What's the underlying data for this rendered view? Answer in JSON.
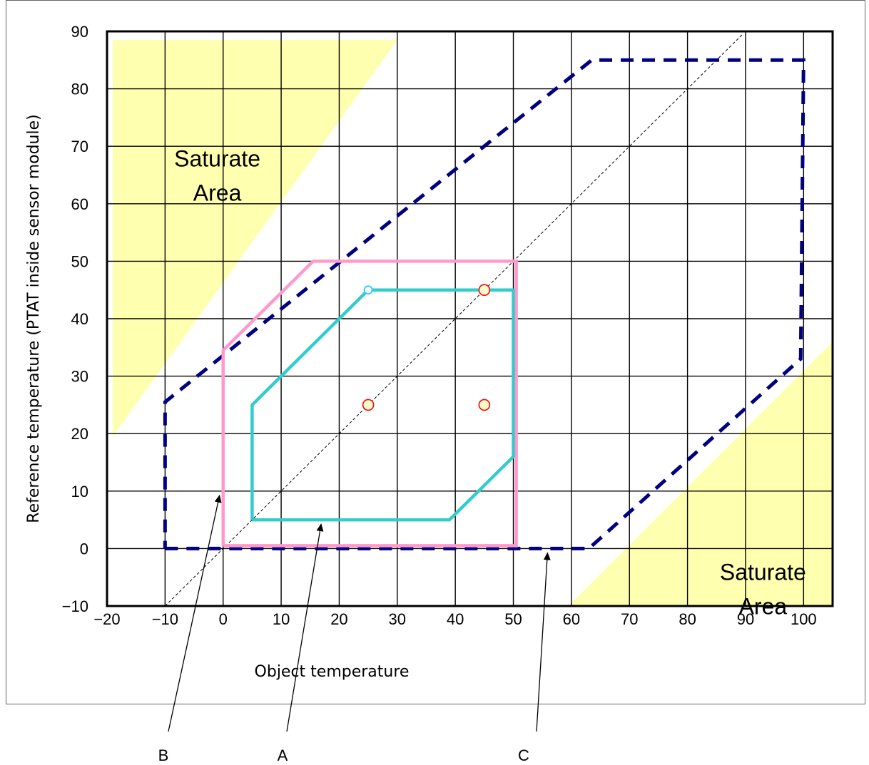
{
  "colors": {
    "saturate_fill": "#FFFFB0",
    "region_A": "#33CCCC",
    "region_B": "#FF99CC",
    "region_C": "#000080",
    "diagonal": "#000000",
    "marker_fill": "#FFFFCC",
    "marker_stroke": "#FF0000",
    "marker_cyan_stroke": "#33CCFF"
  },
  "chart_data": {
    "type": "line",
    "title": "",
    "xlabel": "Object temperature",
    "ylabel": "Reference temperature (PTAT inside sensor module)",
    "xlim": [
      -20,
      105
    ],
    "ylim": [
      -10,
      90
    ],
    "x_ticks": [
      "−20",
      "−10",
      "0",
      "10",
      "20",
      "30",
      "40",
      "50",
      "60",
      "70",
      "80",
      "90",
      "100"
    ],
    "y_ticks": [
      "−10",
      "0",
      "10",
      "20",
      "30",
      "40",
      "50",
      "60",
      "70",
      "80",
      "90"
    ],
    "x_tick_values": [
      -20,
      -10,
      0,
      10,
      20,
      30,
      40,
      50,
      60,
      70,
      80,
      90,
      100
    ],
    "y_tick_values": [
      -10,
      0,
      10,
      20,
      30,
      40,
      50,
      60,
      70,
      80,
      90
    ],
    "grid": true,
    "saturate_areas": [
      {
        "label_lines": [
          "Saturate",
          "Area"
        ],
        "polygon": [
          [
            -19,
            88.5
          ],
          [
            30,
            88.5
          ],
          [
            -19,
            19.5
          ]
        ]
      },
      {
        "label_lines": [
          "Saturate",
          "Area"
        ],
        "polygon": [
          [
            59.5,
            -10
          ],
          [
            105,
            -10
          ],
          [
            105,
            36
          ]
        ]
      }
    ],
    "series": [
      {
        "key": "A",
        "style": "solid",
        "points": [
          [
            5,
            5
          ],
          [
            39,
            5
          ],
          [
            50,
            16
          ],
          [
            50,
            45
          ],
          [
            25,
            45
          ],
          [
            5,
            25
          ],
          [
            5,
            5
          ]
        ]
      },
      {
        "key": "B",
        "style": "solid",
        "points": [
          [
            0,
            0.5
          ],
          [
            50.5,
            0.5
          ],
          [
            50.5,
            50
          ],
          [
            15.5,
            50
          ],
          [
            0,
            34.5
          ],
          [
            0,
            0.5
          ]
        ]
      },
      {
        "key": "C",
        "style": "dashed",
        "points": [
          [
            -10,
            0
          ],
          [
            63,
            0
          ],
          [
            99.5,
            33
          ],
          [
            100,
            85
          ],
          [
            63.5,
            85
          ],
          [
            -10,
            25.5
          ],
          [
            -10,
            0
          ]
        ]
      }
    ],
    "diagonal": {
      "from": [
        -10,
        -10
      ],
      "to": [
        89.5,
        89.5
      ]
    },
    "markers": [
      {
        "x": 25,
        "y": 25,
        "style": "red"
      },
      {
        "x": 45,
        "y": 45,
        "style": "red"
      },
      {
        "x": 45,
        "y": 25,
        "style": "red"
      },
      {
        "x": 25,
        "y": 45,
        "style": "cyan"
      }
    ],
    "callouts": [
      {
        "label": "B",
        "target": [
          0,
          10
        ]
      },
      {
        "label": "A",
        "target": [
          17.5,
          5
        ]
      },
      {
        "label": "C",
        "target": [
          56.5,
          0
        ]
      }
    ]
  }
}
